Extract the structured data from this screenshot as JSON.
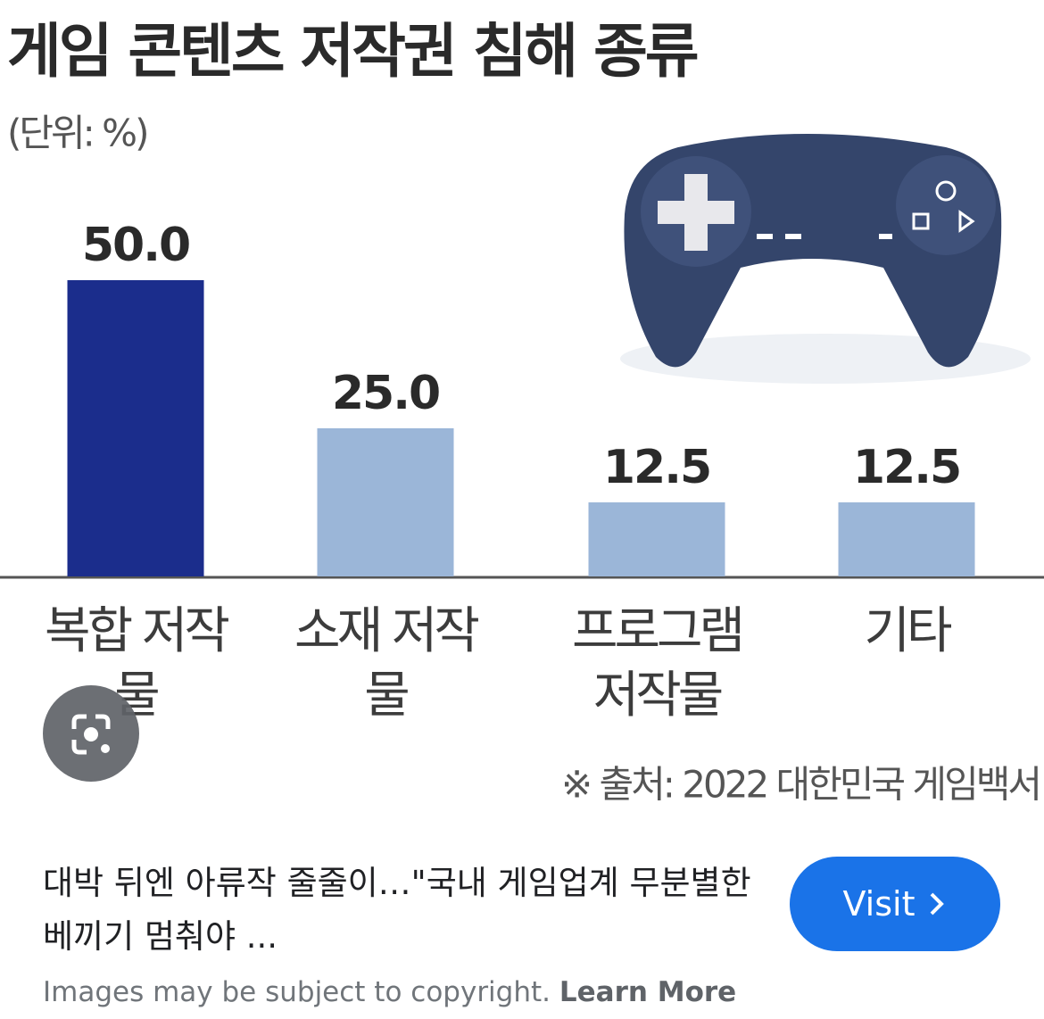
{
  "chart_data": {
    "type": "bar",
    "title": "게임 콘텐츠 저작권 침해 종류",
    "subtitle": "(단위: %)",
    "categories": [
      "복합 저작물",
      "소재 저작물",
      "프로그램 저작물",
      "기타"
    ],
    "values": [
      50,
      25,
      12.5,
      12.5
    ],
    "value_labels": [
      "50.0",
      "25.0",
      "12.5",
      "12.5"
    ],
    "colors": [
      "#1b2d8c",
      "#9bb6d8",
      "#9bb6d8",
      "#9bb6d8"
    ],
    "source": "※ 출처: 2022 대한민국 게임백서"
  },
  "result": {
    "caption": "대박 뒤엔 아류작 줄줄이…\"국내 게임업계 무분별한 베끼기 멈춰야 ...",
    "button": "Visit"
  },
  "footer": {
    "notice": "Images may be subject to copyright.",
    "link": "Learn More"
  }
}
